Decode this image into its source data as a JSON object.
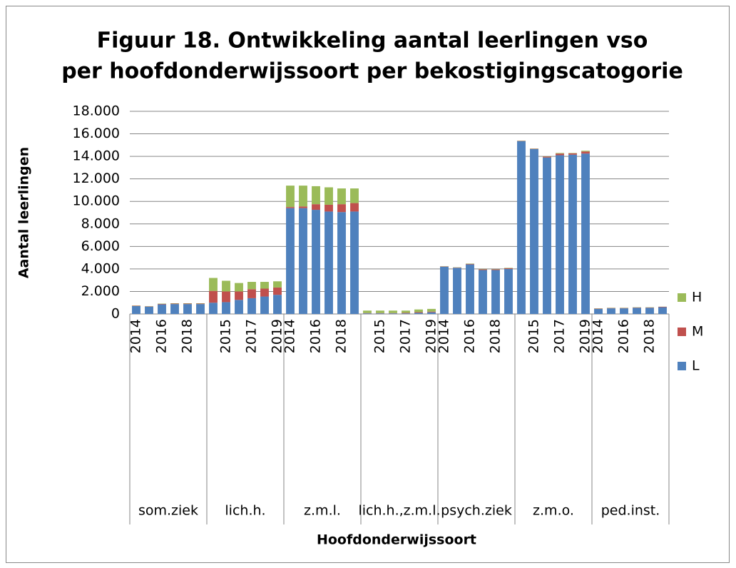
{
  "chart_data": {
    "type": "stacked_bar",
    "title": [
      "Figuur 18. Ontwikkeling aantal leerlingen vso",
      "per hoofdonderwijssoort per bekostigingscatogorie"
    ],
    "y_label": "Aantal leerlingen",
    "x_label": "Hoofdonderwijssoort",
    "groups": [
      "som.ziek",
      "lich.h.",
      "z.m.l.",
      "lich.h.,z.m.l.",
      "psych.ziek",
      "z.m.o.",
      "ped.inst."
    ],
    "categories": [
      "2014",
      null,
      "2016",
      null,
      "2018",
      null,
      null,
      "2015",
      null,
      "2017",
      null,
      "2019",
      "2014",
      null,
      "2016",
      null,
      "2018",
      null,
      null,
      "2015",
      null,
      "2017",
      null,
      "2019",
      "2014",
      null,
      "2016",
      null,
      "2018",
      null,
      null,
      "2015",
      null,
      "2017",
      null,
      "2019",
      "2014",
      null,
      "2016",
      null,
      "2018",
      null
    ],
    "series": [
      {
        "name": "L",
        "color": "#4f81bd",
        "values": [
          700,
          650,
          850,
          880,
          880,
          880,
          1000,
          1050,
          1250,
          1400,
          1550,
          1700,
          9400,
          9400,
          9250,
          9100,
          9050,
          9100,
          50,
          50,
          50,
          50,
          100,
          150,
          4200,
          4100,
          4400,
          3900,
          3900,
          4000,
          15350,
          14650,
          13900,
          14100,
          14150,
          14250,
          450,
          500,
          500,
          550,
          550,
          600
        ]
      },
      {
        "name": "M",
        "color": "#c0504d",
        "values": [
          30,
          30,
          40,
          40,
          40,
          40,
          1050,
          950,
          750,
          800,
          700,
          650,
          100,
          150,
          500,
          600,
          700,
          750,
          30,
          30,
          30,
          50,
          60,
          60,
          30,
          30,
          50,
          70,
          60,
          70,
          30,
          30,
          80,
          150,
          120,
          180,
          30,
          30,
          30,
          30,
          30,
          40
        ]
      },
      {
        "name": "H",
        "color": "#9bbb59",
        "values": [
          20,
          20,
          30,
          30,
          30,
          30,
          1150,
          950,
          750,
          650,
          600,
          550,
          1900,
          1850,
          1600,
          1550,
          1400,
          1300,
          220,
          220,
          220,
          200,
          240,
          240,
          20,
          20,
          30,
          30,
          20,
          30,
          20,
          20,
          20,
          50,
          30,
          70,
          20,
          20,
          20,
          20,
          20,
          10
        ]
      }
    ],
    "ylim": [
      0,
      18000
    ],
    "yticks": [
      0,
      {
        "value": 2000,
        "label": "2.000"
      },
      {
        "value": 4000,
        "label": "4.000"
      },
      {
        "value": 6000,
        "label": "6.000"
      },
      {
        "value": 8000,
        "label": "8.000"
      },
      {
        "value": 10000,
        "label": "10.000"
      },
      {
        "value": 12000,
        "label": "12.000"
      },
      {
        "value": 14000,
        "label": "14.000"
      },
      {
        "value": 16000,
        "label": "16.000"
      },
      {
        "value": 18000,
        "label": "18.000"
      }
    ],
    "grid": true,
    "legend": "right"
  }
}
